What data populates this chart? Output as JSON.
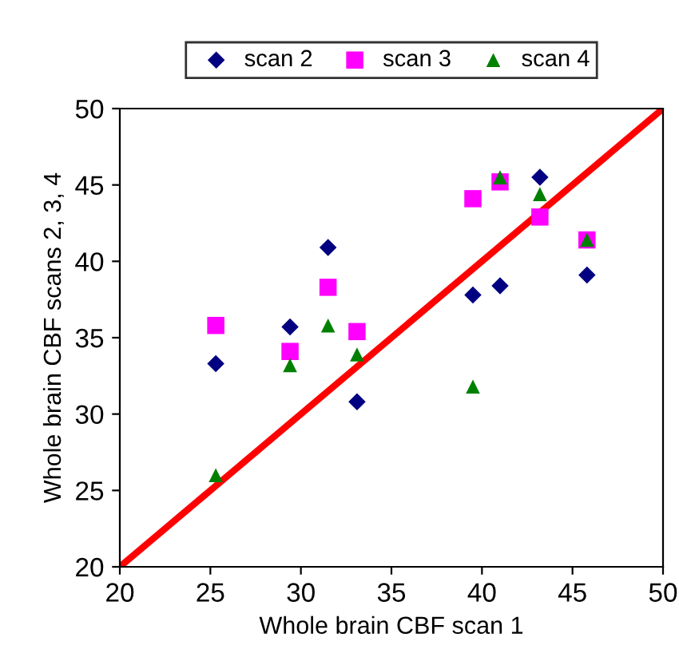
{
  "chart_data": {
    "type": "scatter",
    "xlabel": "Whole brain CBF scan 1",
    "ylabel": "Whole brain CBF scans 2, 3, 4",
    "x": [
      25.3,
      29.4,
      31.5,
      33.1,
      39.5,
      41,
      43.2,
      45.8
    ],
    "series": [
      {
        "name": "scan 2",
        "color": "#000080",
        "marker": "diamond",
        "values": [
          33.3,
          35.7,
          40.9,
          30.8,
          37.8,
          38.4,
          45.5,
          39.1
        ]
      },
      {
        "name": "scan 3",
        "color": "#ff00ff",
        "marker": "square",
        "values": [
          35.8,
          34.1,
          38.3,
          35.4,
          44.1,
          45.2,
          42.9,
          41.4
        ]
      },
      {
        "name": "scan 4",
        "color": "#008000",
        "marker": "triangle",
        "values": [
          26,
          33.2,
          35.8,
          33.9,
          31.8,
          45.5,
          44.4,
          41.4
        ]
      },
      {
        "type": "line",
        "color": "#ff0000",
        "marker": "none",
        "x": [
          20,
          50
        ],
        "values": [
          20,
          50
        ]
      }
    ],
    "xlim": [
      20,
      50
    ],
    "ylim": [
      20,
      50
    ],
    "xticks": [
      20,
      25,
      30,
      35,
      40,
      45,
      50
    ],
    "yticks": [
      20,
      25,
      30,
      35,
      40,
      45,
      50
    ],
    "grid": false,
    "legend": "top"
  }
}
